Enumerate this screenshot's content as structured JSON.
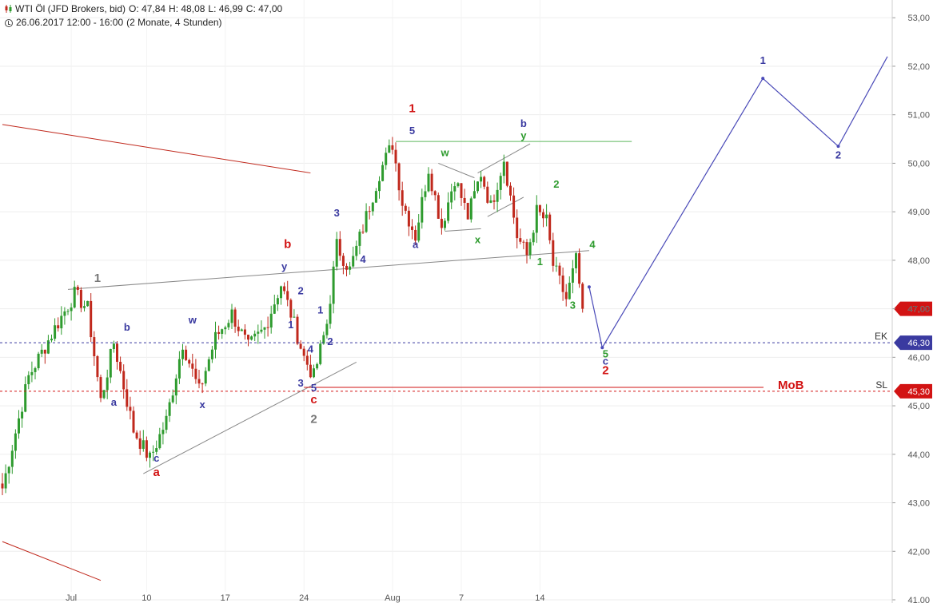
{
  "header": {
    "instrument": "WTI Öl (JFD Brokers, bid)",
    "open": "O: 47,84",
    "high": "H: 48,08",
    "low": "L: 46,99",
    "close": "C: 47,00",
    "range_info": "26.06.2017 12:00 - 16:00",
    "period_info": "(2 Monate, 4 Stunden)"
  },
  "colors": {
    "bull": "#2e9b2e",
    "bear": "#c0281c",
    "blue_wave": "#3a3aa0",
    "red_wave": "#d21313",
    "green_wave": "#2e9b2e",
    "grey_wave": "#777777",
    "trendline_grey": "#888888",
    "trendline_red": "#c0281c",
    "resistance_green": "#5cb85c",
    "forecast": "#4a4ab8"
  },
  "chart_data": {
    "type": "candlestick",
    "y_axis": {
      "ticks": [
        "41,00",
        "42,00",
        "43,00",
        "44,00",
        "45,00",
        "46,00",
        "47,00",
        "48,00",
        "49,00",
        "50,00",
        "51,00",
        "52,00",
        "53,00"
      ],
      "range": [
        41.0,
        53.3
      ],
      "position": "right"
    },
    "x_axis": {
      "ticks": [
        "Jul",
        "10",
        "17",
        "24",
        "Aug",
        "7",
        "14"
      ]
    },
    "price_tags": [
      {
        "label": "",
        "value": "47,00",
        "price": 47.0,
        "color": "#d21313"
      },
      {
        "label": "EK",
        "value": "46,30",
        "price": 46.3,
        "color": "#3a3aa0"
      },
      {
        "label": "SL",
        "value": "45,30",
        "price": 45.3,
        "color": "#d21313"
      }
    ],
    "annotations": {
      "mob_label": "MoB",
      "mob_level": 45.38
    },
    "anchors": [
      {
        "i": 0,
        "p": 43.3
      },
      {
        "i": 8,
        "p": 45.6
      },
      {
        "i": 16,
        "p": 46.6
      },
      {
        "i": 22,
        "p": 47.3
      },
      {
        "i": 26,
        "p": 47.0
      },
      {
        "i": 30,
        "p": 45.1
      },
      {
        "i": 34,
        "p": 46.3
      },
      {
        "i": 40,
        "p": 44.5
      },
      {
        "i": 45,
        "p": 43.9
      },
      {
        "i": 50,
        "p": 44.7
      },
      {
        "i": 55,
        "p": 46.3
      },
      {
        "i": 60,
        "p": 45.3
      },
      {
        "i": 65,
        "p": 46.4
      },
      {
        "i": 70,
        "p": 46.9
      },
      {
        "i": 75,
        "p": 46.2
      },
      {
        "i": 80,
        "p": 46.6
      },
      {
        "i": 85,
        "p": 47.5
      },
      {
        "i": 88,
        "p": 46.9
      },
      {
        "i": 92,
        "p": 46.0
      },
      {
        "i": 95,
        "p": 45.6
      },
      {
        "i": 99,
        "p": 46.7
      },
      {
        "i": 102,
        "p": 48.3
      },
      {
        "i": 106,
        "p": 47.8
      },
      {
        "i": 111,
        "p": 48.9
      },
      {
        "i": 115,
        "p": 49.8
      },
      {
        "i": 119,
        "p": 50.4
      },
      {
        "i": 122,
        "p": 49.2
      },
      {
        "i": 126,
        "p": 48.5
      },
      {
        "i": 130,
        "p": 49.9
      },
      {
        "i": 134,
        "p": 48.7
      },
      {
        "i": 138,
        "p": 49.7
      },
      {
        "i": 142,
        "p": 48.9
      },
      {
        "i": 146,
        "p": 49.8
      },
      {
        "i": 149,
        "p": 49.1
      },
      {
        "i": 153,
        "p": 50.1
      },
      {
        "i": 157,
        "p": 48.5
      },
      {
        "i": 160,
        "p": 48.1
      },
      {
        "i": 163,
        "p": 49.0
      },
      {
        "i": 166,
        "p": 48.8
      },
      {
        "i": 168,
        "p": 47.9
      },
      {
        "i": 172,
        "p": 47.2
      },
      {
        "i": 175,
        "p": 48.0
      },
      {
        "i": 177,
        "p": 47.0
      }
    ],
    "forecast_path": [
      {
        "i": 179,
        "p": 47.45
      },
      {
        "i": 183,
        "p": 46.2
      },
      {
        "i": 232,
        "p": 51.75
      },
      {
        "i": 255,
        "p": 50.35
      },
      {
        "i": 270,
        "p": 52.2
      }
    ],
    "lines": [
      {
        "name": "upper-red-channel",
        "color": "trendline_red",
        "from": {
          "i": 0,
          "p": 50.8
        },
        "to": {
          "i": 94,
          "p": 49.8
        }
      },
      {
        "name": "lower-red-channel",
        "color": "trendline_red",
        "from": {
          "i": 0,
          "p": 42.2
        },
        "to": {
          "i": 30,
          "p": 41.4
        }
      },
      {
        "name": "grey-upper-trend",
        "color": "trendline_grey",
        "from": {
          "i": 20,
          "p": 47.4
        },
        "to": {
          "i": 179,
          "p": 48.2
        }
      },
      {
        "name": "grey-lower-trend",
        "color": "trendline_grey",
        "from": {
          "i": 43,
          "p": 43.6
        },
        "to": {
          "i": 108,
          "p": 45.9
        }
      },
      {
        "name": "green-resistance",
        "color": "resistance_green",
        "from": {
          "i": 120,
          "p": 50.45
        },
        "to": {
          "i": 192,
          "p": 50.45
        }
      },
      {
        "name": "triangle-top",
        "color": "trendline_grey",
        "from": {
          "i": 133,
          "p": 50.0
        },
        "to": {
          "i": 144,
          "p": 49.7
        }
      },
      {
        "name": "triangle-bottom",
        "color": "trendline_grey",
        "from": {
          "i": 135,
          "p": 48.6
        },
        "to": {
          "i": 146,
          "p": 48.65
        }
      },
      {
        "name": "wedge-top",
        "color": "trendline_grey",
        "from": {
          "i": 145,
          "p": 49.8
        },
        "to": {
          "i": 161,
          "p": 50.4
        }
      },
      {
        "name": "wedge-bottom",
        "color": "trendline_grey",
        "from": {
          "i": 148,
          "p": 48.9
        },
        "to": {
          "i": 159,
          "p": 49.3
        }
      }
    ],
    "wave_labels": [
      {
        "text": "1",
        "color": "grey_wave",
        "i": 29,
        "p": 47.55
      },
      {
        "text": "b",
        "color": "blue_wave",
        "i": 38,
        "p": 46.55
      },
      {
        "text": "a",
        "color": "blue_wave",
        "i": 34,
        "p": 45.0
      },
      {
        "text": "c",
        "color": "blue_wave",
        "i": 47,
        "p": 43.85
      },
      {
        "text": "a",
        "color": "red_wave",
        "i": 47,
        "p": 43.55
      },
      {
        "text": "w",
        "color": "blue_wave",
        "i": 58,
        "p": 46.7
      },
      {
        "text": "x",
        "color": "blue_wave",
        "i": 61,
        "p": 44.95
      },
      {
        "text": "b",
        "color": "red_wave",
        "i": 87,
        "p": 48.25
      },
      {
        "text": "y",
        "color": "blue_wave",
        "i": 86,
        "p": 47.8
      },
      {
        "text": "2",
        "color": "blue_wave",
        "i": 91,
        "p": 47.3
      },
      {
        "text": "1",
        "color": "blue_wave",
        "i": 88,
        "p": 46.6
      },
      {
        "text": "1",
        "color": "blue_wave",
        "i": 97,
        "p": 46.9
      },
      {
        "text": "4",
        "color": "blue_wave",
        "i": 94,
        "p": 46.1
      },
      {
        "text": "2",
        "color": "blue_wave",
        "i": 100,
        "p": 46.25
      },
      {
        "text": "3",
        "color": "blue_wave",
        "i": 91,
        "p": 45.4
      },
      {
        "text": "5",
        "color": "blue_wave",
        "i": 95,
        "p": 45.3
      },
      {
        "text": "c",
        "color": "red_wave",
        "i": 95,
        "p": 45.05
      },
      {
        "text": "2",
        "color": "grey_wave",
        "i": 95,
        "p": 44.65
      },
      {
        "text": "3",
        "color": "blue_wave",
        "i": 102,
        "p": 48.9
      },
      {
        "text": "4",
        "color": "blue_wave",
        "i": 110,
        "p": 47.95
      },
      {
        "text": "1",
        "color": "red_wave",
        "i": 125,
        "p": 51.05
      },
      {
        "text": "5",
        "color": "blue_wave",
        "i": 125,
        "p": 50.6
      },
      {
        "text": "a",
        "color": "blue_wave",
        "i": 126,
        "p": 48.25
      },
      {
        "text": "w",
        "color": "green_wave",
        "i": 135,
        "p": 50.15
      },
      {
        "text": "x",
        "color": "green_wave",
        "i": 145,
        "p": 48.35
      },
      {
        "text": "b",
        "color": "blue_wave",
        "i": 159,
        "p": 50.75
      },
      {
        "text": "y",
        "color": "green_wave",
        "i": 159,
        "p": 50.5
      },
      {
        "text": "2",
        "color": "green_wave",
        "i": 169,
        "p": 49.5
      },
      {
        "text": "1",
        "color": "green_wave",
        "i": 164,
        "p": 47.9
      },
      {
        "text": "4",
        "color": "green_wave",
        "i": 180,
        "p": 48.25
      },
      {
        "text": "3",
        "color": "green_wave",
        "i": 174,
        "p": 47.0
      },
      {
        "text": "5",
        "color": "green_wave",
        "i": 184,
        "p": 46.0
      },
      {
        "text": "c",
        "color": "blue_wave",
        "i": 184,
        "p": 45.85
      },
      {
        "text": "2",
        "color": "red_wave",
        "i": 184,
        "p": 45.65
      },
      {
        "text": "1",
        "color": "blue_wave",
        "i": 232,
        "p": 52.05
      },
      {
        "text": "2",
        "color": "blue_wave",
        "i": 255,
        "p": 50.1
      }
    ]
  }
}
